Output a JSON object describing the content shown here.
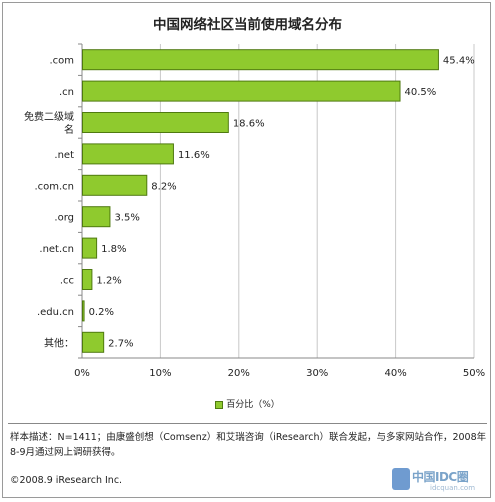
{
  "chart_data": {
    "type": "bar",
    "orientation": "horizontal",
    "title": "中国网络社区当前使用域名分布",
    "categories": [
      ".com",
      ".cn",
      "免费二级域名",
      ".net",
      ".com.cn",
      ".org",
      ".net.cn",
      ".cc",
      ".edu.cn",
      "其他："
    ],
    "category_lines": [
      [
        ".com"
      ],
      [
        ".cn"
      ],
      [
        "免费二级域",
        "名"
      ],
      [
        ".net"
      ],
      [
        ".com.cn"
      ],
      [
        ".org"
      ],
      [
        ".net.cn"
      ],
      [
        ".cc"
      ],
      [
        ".edu.cn"
      ],
      [
        "其他："
      ]
    ],
    "values": [
      45.4,
      40.5,
      18.6,
      11.6,
      8.2,
      3.5,
      1.8,
      1.2,
      0.2,
      2.7
    ],
    "value_labels": [
      "45.4%",
      "40.5%",
      "18.6%",
      "11.6%",
      "8.2%",
      "3.5%",
      "1.8%",
      "1.2%",
      "0.2%",
      "2.7%"
    ],
    "xlim": [
      0,
      50
    ],
    "x_ticks": [
      0,
      10,
      20,
      30,
      40,
      50
    ],
    "x_tick_labels": [
      "0%",
      "10%",
      "20%",
      "30%",
      "40%",
      "50%"
    ],
    "legend": {
      "label": "百分比（%）",
      "position": "bottom"
    },
    "grid": true,
    "colors": {
      "bar_fill": "#8fca2e",
      "bar_stroke": "#4f7a10",
      "grid": "#c8c8c8"
    }
  },
  "footer": {
    "note": "样本描述：N=1411；由康盛创想（Comsenz）和艾瑞咨询（iResearch）联合发起，与多家网站合作，2008年8-9月通过网上调研获得。",
    "copyright": "©2008.9 iResearch Inc.",
    "watermark_main": "中国IDC圈",
    "watermark_sub": "idcquan.com"
  }
}
